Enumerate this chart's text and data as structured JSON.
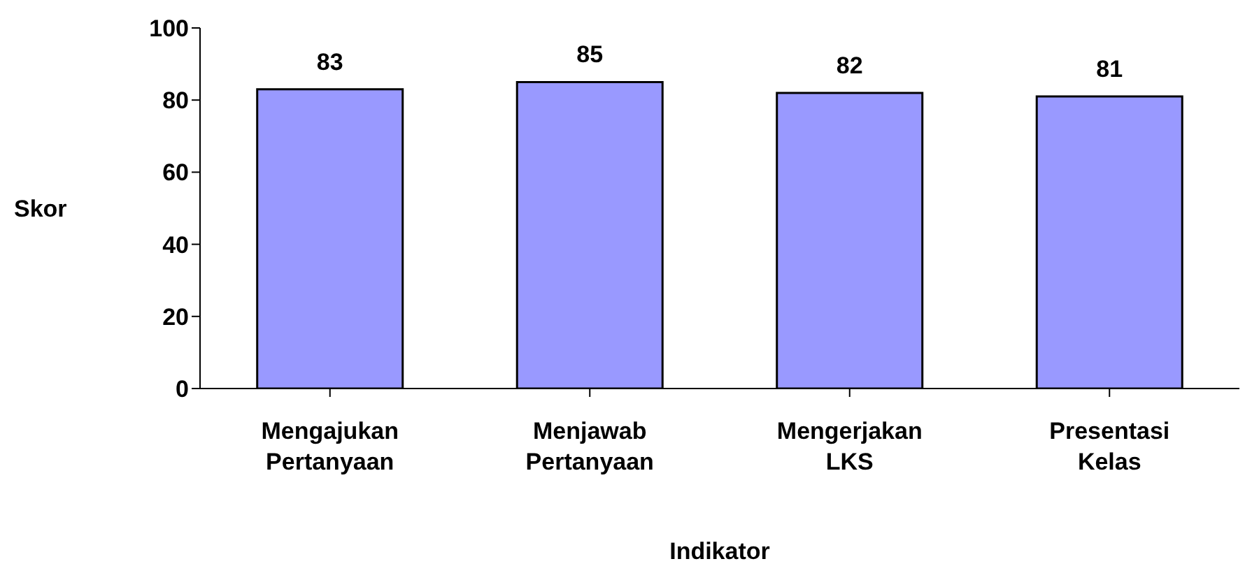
{
  "chart_data": {
    "type": "bar",
    "xlabel": "Indikator",
    "ylabel": "Skor",
    "categories": [
      "Mengajukan Pertanyaan",
      "Menjawab Pertanyaan",
      "Mengerjakan LKS",
      "Presentasi Kelas"
    ],
    "values": [
      83,
      85,
      82,
      81
    ],
    "color": "#9999ff",
    "ylim": [
      0,
      100
    ],
    "yticks": [
      0,
      20,
      40,
      60,
      80,
      100
    ],
    "data_labels": true,
    "grid": false,
    "legend": false
  }
}
